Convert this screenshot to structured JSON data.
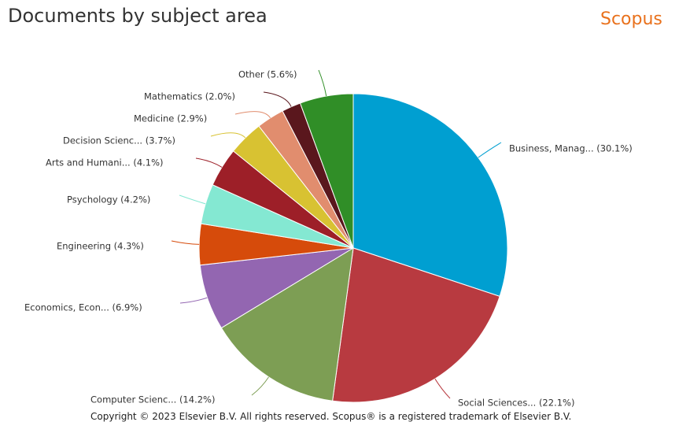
{
  "page": {
    "title": "Documents by subject area",
    "logo_text": "Scopus",
    "footer": "Copyright © 2023 Elsevier B.V. All rights reserved. Scopus® is a registered trademark of Elsevier B.V."
  },
  "chart_data": {
    "type": "pie",
    "title": "Documents by subject area",
    "slices": [
      {
        "label": "Business, Manag... (30.1%)",
        "value": 30.1,
        "color": "#009fd1"
      },
      {
        "label": "Social Sciences... (22.1%)",
        "value": 22.1,
        "color": "#b83a40"
      },
      {
        "label": "Computer Scienc... (14.2%)",
        "value": 14.2,
        "color": "#7d9e54"
      },
      {
        "label": "Economics, Econ... (6.9%)",
        "value": 6.9,
        "color": "#9366b1"
      },
      {
        "label": "Engineering (4.3%)",
        "value": 4.3,
        "color": "#d64b0b"
      },
      {
        "label": "Psychology (4.2%)",
        "value": 4.2,
        "color": "#84e8d2"
      },
      {
        "label": "Arts and Humani... (4.1%)",
        "value": 4.1,
        "color": "#9d1f28"
      },
      {
        "label": "Decision Scienc... (3.7%)",
        "value": 3.7,
        "color": "#d8c232"
      },
      {
        "label": "Medicine (2.9%)",
        "value": 2.9,
        "color": "#e18d6e"
      },
      {
        "label": "Mathematics (2.0%)",
        "value": 2.0,
        "color": "#5a171d"
      },
      {
        "label": "Other (5.6%)",
        "value": 5.6,
        "color": "#308e27"
      }
    ]
  }
}
